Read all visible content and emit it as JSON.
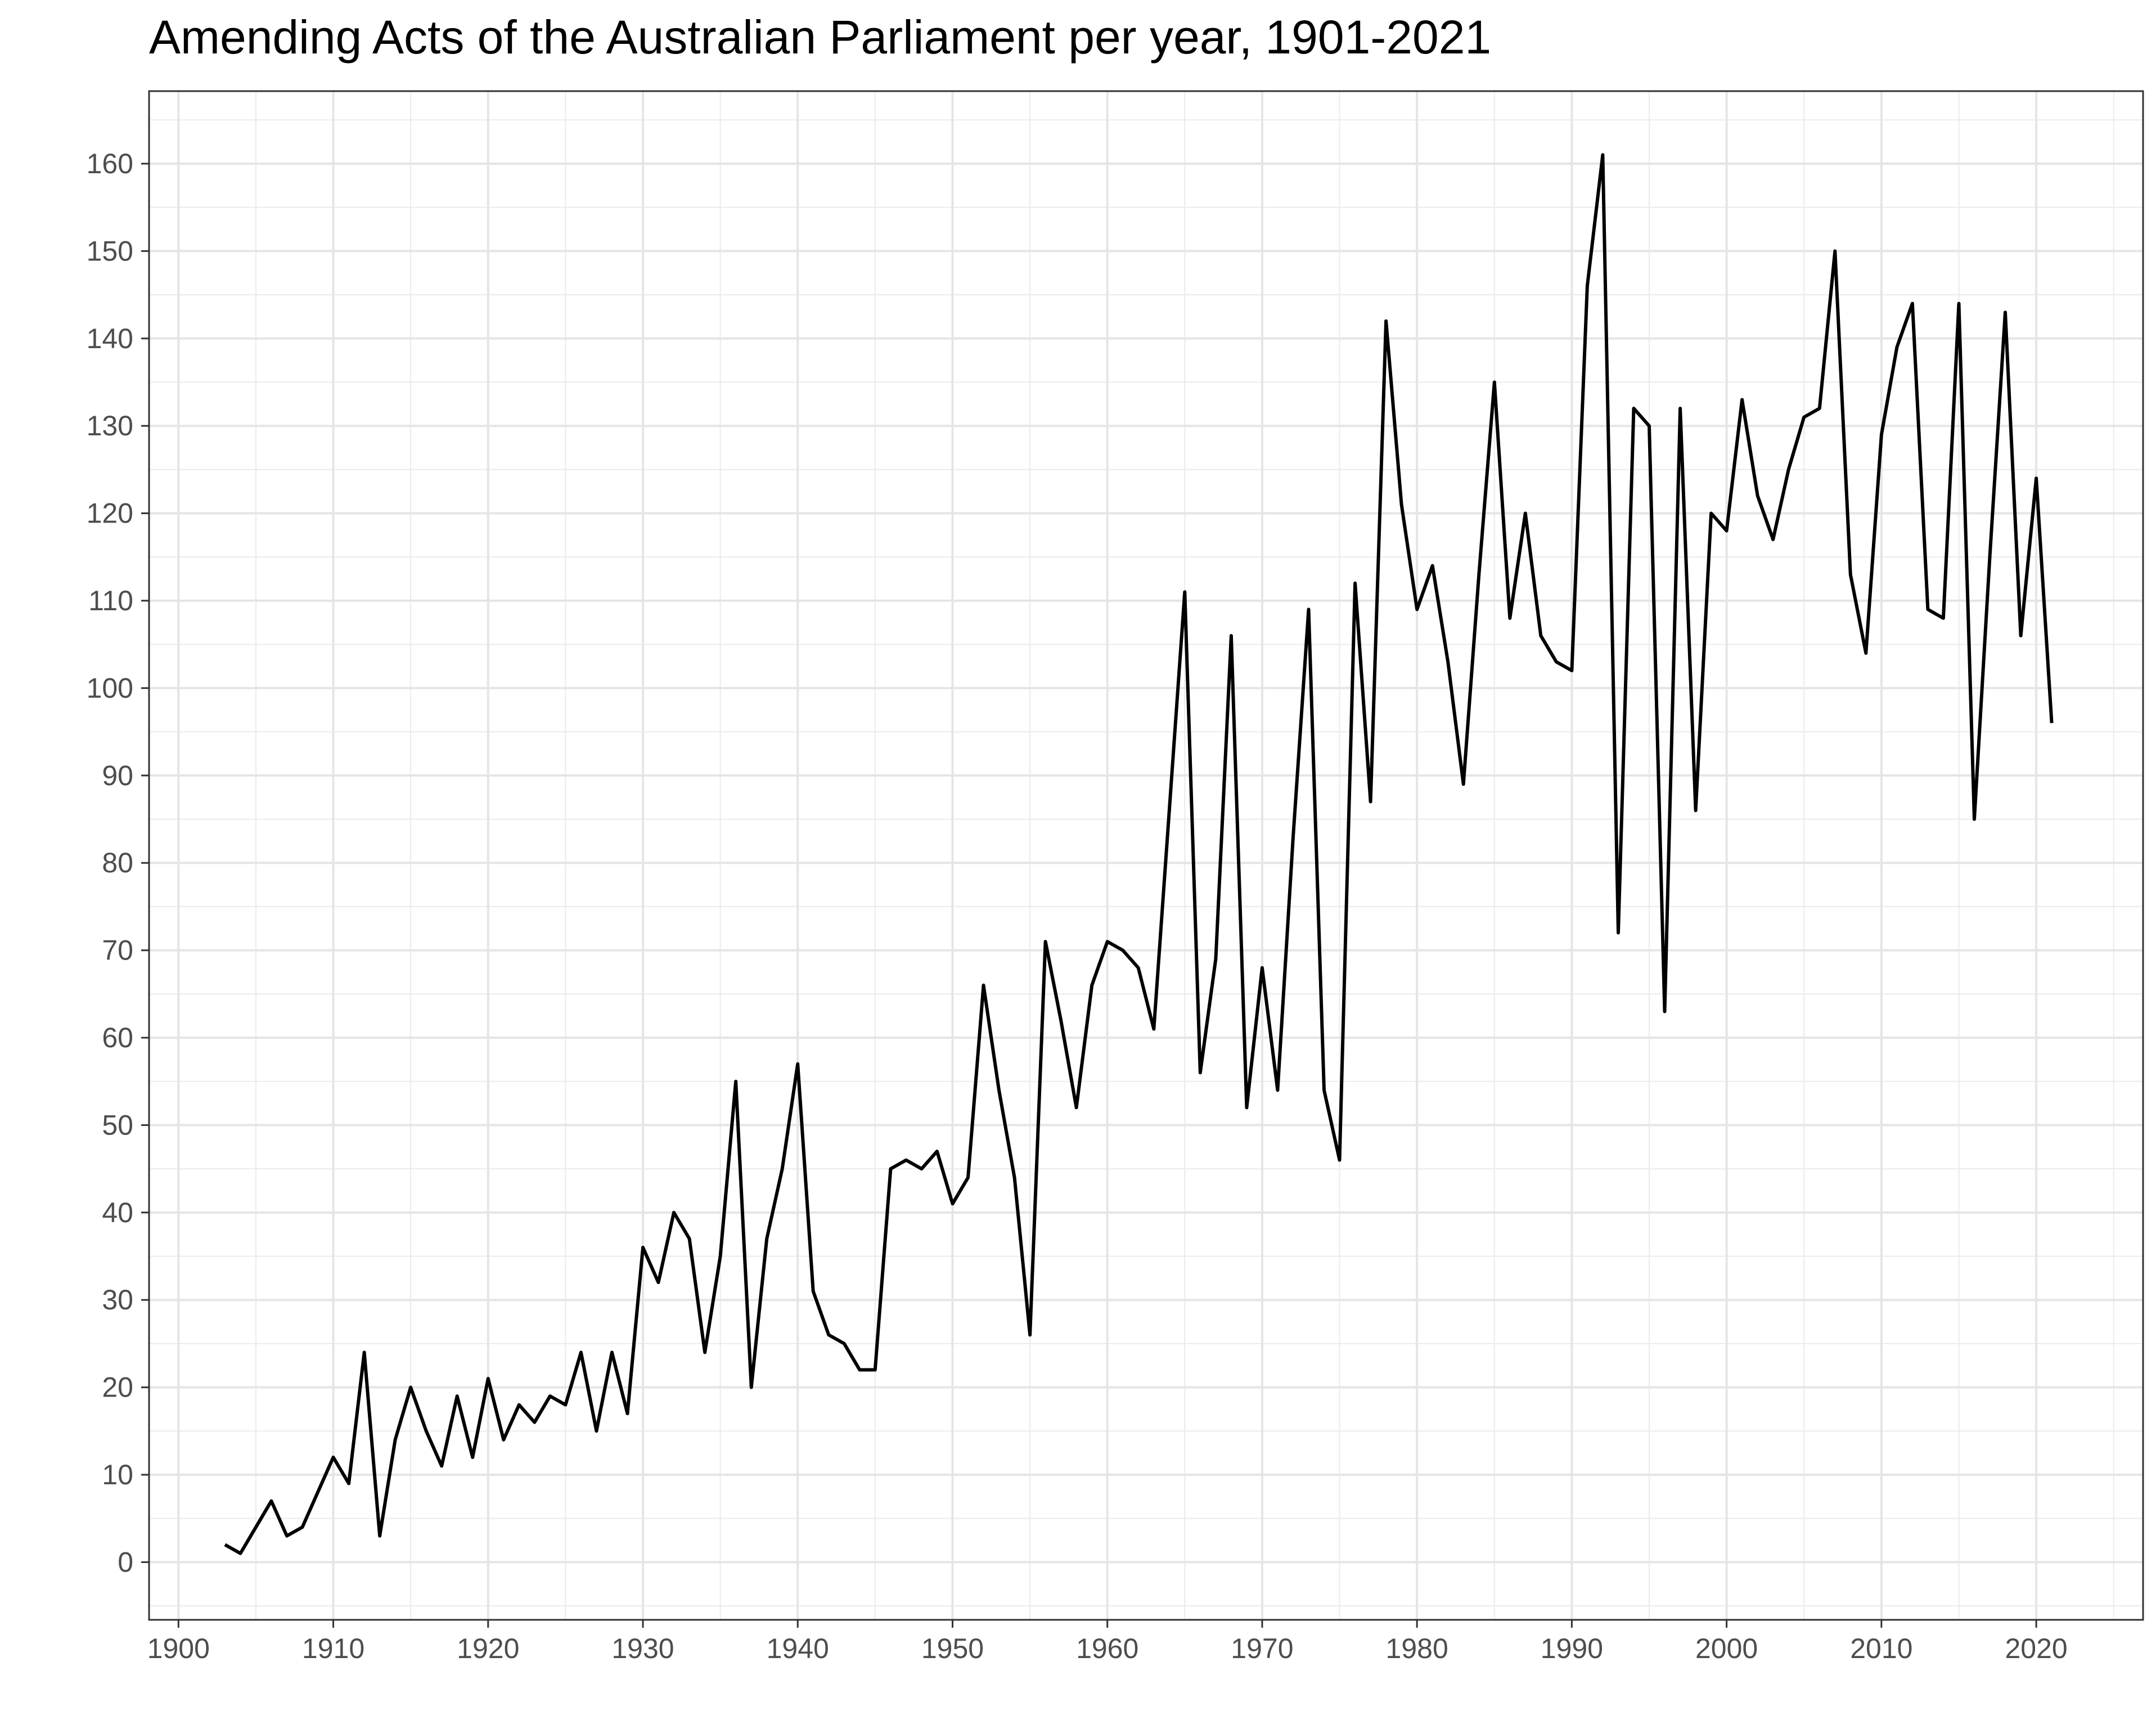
{
  "chart_data": {
    "type": "line",
    "title": "Amending Acts of the Australian Parliament per year, 1901-2021",
    "xlabel": "",
    "ylabel": "",
    "xlim": [
      1898.1,
      2026.9
    ],
    "ylim": [
      -6.6,
      168.3
    ],
    "x_ticks": [
      1900,
      1910,
      1920,
      1930,
      1940,
      1950,
      1960,
      1970,
      1980,
      1990,
      2000,
      2010,
      2020
    ],
    "y_ticks": [
      0,
      10,
      20,
      30,
      40,
      50,
      60,
      70,
      80,
      90,
      100,
      110,
      120,
      130,
      140,
      150,
      160
    ],
    "grid": true,
    "series": [
      {
        "color": "#000000",
        "x": [
          1903,
          1904,
          1905,
          1906,
          1907,
          1908,
          1909,
          1910,
          1911,
          1912,
          1913,
          1914,
          1915,
          1916,
          1917,
          1918,
          1919,
          1920,
          1921,
          1922,
          1923,
          1924,
          1925,
          1926,
          1927,
          1928,
          1929,
          1930,
          1931,
          1932,
          1933,
          1934,
          1935,
          1936,
          1937,
          1938,
          1939,
          1940,
          1941,
          1942,
          1943,
          1944,
          1945,
          1946,
          1947,
          1948,
          1949,
          1950,
          1951,
          1952,
          1953,
          1954,
          1955,
          1956,
          1957,
          1958,
          1959,
          1960,
          1961,
          1962,
          1963,
          1964,
          1965,
          1966,
          1967,
          1968,
          1969,
          1970,
          1971,
          1972,
          1973,
          1974,
          1975,
          1976,
          1977,
          1978,
          1979,
          1980,
          1981,
          1982,
          1983,
          1984,
          1985,
          1986,
          1987,
          1988,
          1989,
          1990,
          1991,
          1992,
          1993,
          1994,
          1995,
          1996,
          1997,
          1998,
          1999,
          2000,
          2001,
          2002,
          2003,
          2004,
          2005,
          2006,
          2007,
          2008,
          2009,
          2010,
          2011,
          2012,
          2013,
          2014,
          2015,
          2016,
          2017,
          2018,
          2019,
          2020,
          2021
        ],
        "values": [
          2,
          1,
          4,
          7,
          3,
          4,
          8,
          12,
          9,
          24,
          3,
          14,
          20,
          15,
          11,
          19,
          12,
          21,
          14,
          18,
          16,
          19,
          18,
          24,
          15,
          24,
          17,
          36,
          32,
          40,
          37,
          24,
          35,
          55,
          20,
          37,
          45,
          57,
          31,
          26,
          25,
          22,
          22,
          45,
          46,
          45,
          47,
          41,
          44,
          66,
          54,
          44,
          26,
          71,
          62,
          52,
          66,
          71,
          70,
          68,
          61,
          86,
          111,
          56,
          69,
          106,
          52,
          68,
          54,
          83,
          109,
          54,
          46,
          112,
          87,
          142,
          121,
          109,
          114,
          103,
          89,
          113,
          135,
          108,
          120,
          106,
          103,
          102,
          146,
          161,
          72,
          132,
          130,
          63,
          132,
          86,
          120,
          118,
          133,
          122,
          117,
          125,
          131,
          132,
          150,
          113,
          104,
          129,
          139,
          144,
          109,
          108,
          144,
          85,
          115,
          143,
          106,
          124,
          96
        ]
      }
    ]
  }
}
